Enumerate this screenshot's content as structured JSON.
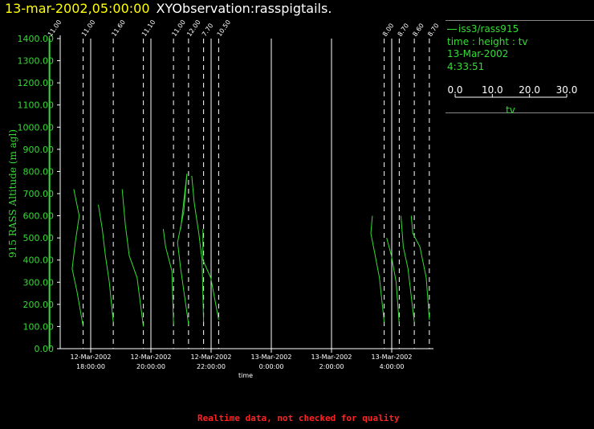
{
  "header": {
    "timestamp": "13-mar-2002,05:00:00",
    "observation": "XYObservation:rasspigtails."
  },
  "legend": {
    "series": "iss3/rass915",
    "variables": "time : height : tv",
    "date": "13-Mar-2002",
    "time": "4:33:51",
    "scale_ticks": [
      "0.0",
      "10.0",
      "20.0",
      "30.0"
    ],
    "scale_label": "tv"
  },
  "footer": {
    "note": "Realtime data, not checked for quality"
  },
  "colors": {
    "trace": "#33dd33",
    "axis": "#ffffff",
    "title_timestamp": "#ffff00",
    "footer": "#ff2222"
  },
  "chart_data": {
    "type": "line",
    "ylabel": "915 RASS Altitude (m agl)",
    "xlabel": "time",
    "ylim": [
      0,
      1400
    ],
    "y_ticks": [
      "0.00",
      "100.00",
      "200.00",
      "300.00",
      "400.00",
      "500.00",
      "600.00",
      "700.00",
      "800.00",
      "900.00",
      "1000.00",
      "1100.00",
      "1200.00",
      "1300.00",
      "1400.00"
    ],
    "xlim_hours": [
      16.6,
      6.8
    ],
    "x_ticks": [
      {
        "t": 18,
        "date": "12-Mar-2002",
        "time": "18:00:00"
      },
      {
        "t": 20,
        "date": "12-Mar-2002",
        "time": "20:00:00"
      },
      {
        "t": 22,
        "date": "12-Mar-2002",
        "time": "22:00:00"
      },
      {
        "t": 24,
        "date": "13-Mar-2002",
        "time": "0:00:00"
      },
      {
        "t": 26,
        "date": "13-Mar-2002",
        "time": "2:00:00"
      },
      {
        "t": 28,
        "date": "13-Mar-2002",
        "time": "4:00:00"
      }
    ],
    "profiles": [
      {
        "label": "11.00",
        "t": 16.63,
        "points": [
          [
            0,
            100
          ],
          [
            0.2,
            200
          ],
          [
            0,
            300
          ]
        ]
      },
      {
        "label": "11.00",
        "t": 17.75,
        "points": [
          [
            -12,
            720
          ],
          [
            -5,
            600
          ],
          [
            -10,
            480
          ],
          [
            -14,
            360
          ],
          [
            -8,
            260
          ],
          [
            0,
            100
          ]
        ]
      },
      {
        "label": "11.60",
        "t": 18.75,
        "points": [
          [
            -19,
            650
          ],
          [
            -14,
            540
          ],
          [
            -10,
            420
          ],
          [
            -5,
            300
          ],
          [
            0,
            120
          ]
        ]
      },
      {
        "label": "11.10",
        "t": 19.75,
        "points": [
          [
            -27,
            720
          ],
          [
            -23,
            560
          ],
          [
            -18,
            420
          ],
          [
            -8,
            320
          ],
          [
            0,
            100
          ]
        ]
      },
      {
        "label": "11.00",
        "t": 20.75,
        "points": [
          [
            -13,
            540
          ],
          [
            -10,
            460
          ],
          [
            -2,
            350
          ],
          [
            0,
            110
          ]
        ]
      },
      {
        "label": "12.00",
        "t": 21.25,
        "points": [
          [
            -10,
            540
          ],
          [
            -5,
            700
          ],
          [
            -2,
            790
          ],
          [
            -6,
            620
          ],
          [
            -14,
            480
          ],
          [
            -10,
            360
          ],
          [
            0,
            110
          ]
        ]
      },
      {
        "label": "7.70",
        "t": 21.75,
        "points": [
          [
            -15,
            780
          ],
          [
            -12,
            660
          ],
          [
            -6,
            520
          ],
          [
            -2,
            400
          ],
          [
            0,
            120
          ]
        ]
      },
      {
        "label": "10.50",
        "t": 22.25,
        "points": [
          [
            -20,
            540
          ],
          [
            -20,
            400
          ],
          [
            -10,
            320
          ],
          [
            0,
            130
          ]
        ]
      },
      {
        "label": "8.00",
        "t": 27.75,
        "points": [
          [
            -15,
            600
          ],
          [
            -17,
            520
          ],
          [
            -12,
            430
          ],
          [
            -6,
            320
          ],
          [
            0,
            120
          ]
        ]
      },
      {
        "label": "8.70",
        "t": 28.25,
        "points": [
          [
            -16,
            500
          ],
          [
            -10,
            420
          ],
          [
            -4,
            300
          ],
          [
            0,
            110
          ]
        ]
      },
      {
        "label": "8.60",
        "t": 28.75,
        "points": [
          [
            -17,
            600
          ],
          [
            -14,
            460
          ],
          [
            -8,
            360
          ],
          [
            0,
            120
          ]
        ]
      },
      {
        "label": "8.70",
        "t": 29.25,
        "points": [
          [
            -23,
            600
          ],
          [
            -21,
            520
          ],
          [
            -12,
            460
          ],
          [
            -4,
            320
          ],
          [
            0,
            130
          ]
        ]
      }
    ]
  }
}
